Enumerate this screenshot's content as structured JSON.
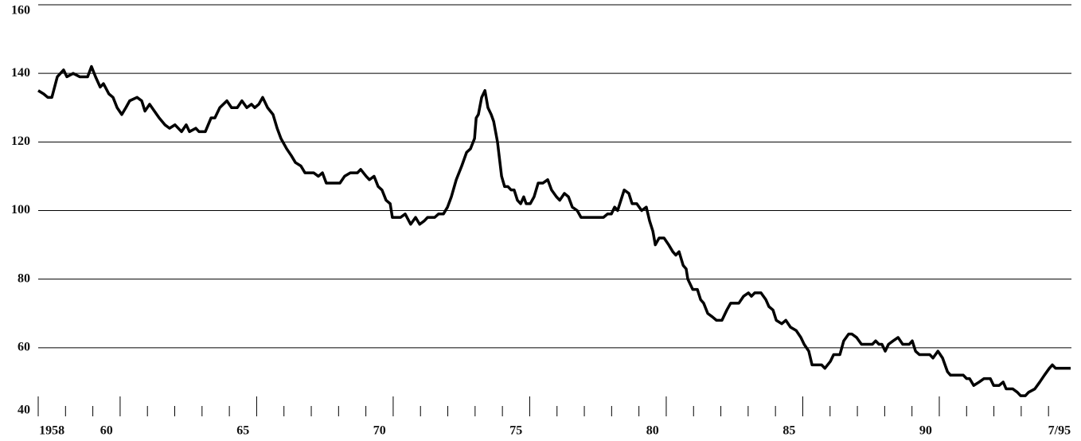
{
  "chart_data": {
    "type": "line",
    "ylim": [
      40,
      160
    ],
    "yticks": [
      40,
      60,
      80,
      100,
      120,
      140,
      160
    ],
    "grid": true,
    "xlim": [
      1958,
      1995.84
    ],
    "xticks": [
      {
        "value": 1958.5,
        "label": "1958"
      },
      {
        "value": 1960.5,
        "label": "60"
      },
      {
        "value": 1965.5,
        "label": "65"
      },
      {
        "value": 1970.5,
        "label": "70"
      },
      {
        "value": 1975.5,
        "label": "75"
      },
      {
        "value": 1980.5,
        "label": "80"
      },
      {
        "value": 1985.5,
        "label": "85"
      },
      {
        "value": 1990.5,
        "label": "90"
      },
      {
        "value": 1995.4,
        "label": "7/95"
      }
    ],
    "x_tick_marks": [
      1959,
      1960,
      1961,
      1962,
      1963,
      1964,
      1965,
      1966,
      1967,
      1968,
      1969,
      1970,
      1971,
      1972,
      1973,
      1974,
      1975,
      1976,
      1977,
      1978,
      1979,
      1980,
      1981,
      1982,
      1983,
      1984,
      1985,
      1986,
      1987,
      1988,
      1989,
      1990,
      1991,
      1992,
      1993,
      1994,
      1995
    ],
    "color": "#000000",
    "x": [
      1958.0,
      1958.2,
      1958.35,
      1958.5,
      1958.7,
      1958.93,
      1959.05,
      1959.28,
      1959.52,
      1959.81,
      1959.95,
      1960.1,
      1960.27,
      1960.39,
      1960.59,
      1960.74,
      1960.89,
      1961.06,
      1961.21,
      1961.35,
      1961.62,
      1961.79,
      1961.91,
      1962.08,
      1962.43,
      1962.64,
      1962.81,
      1963.01,
      1963.25,
      1963.42,
      1963.54,
      1963.77,
      1963.89,
      1964.12,
      1964.33,
      1964.47,
      1964.65,
      1964.91,
      1965.08,
      1965.29,
      1965.46,
      1965.64,
      1965.81,
      1965.93,
      1966.08,
      1966.22,
      1966.4,
      1966.6,
      1966.75,
      1966.89,
      1967.1,
      1967.27,
      1967.42,
      1967.62,
      1967.77,
      1968.09,
      1968.26,
      1968.41,
      1968.55,
      1968.85,
      1969.05,
      1969.22,
      1969.43,
      1969.69,
      1969.81,
      1970.01,
      1970.13,
      1970.3,
      1970.45,
      1970.59,
      1970.74,
      1970.89,
      1970.97,
      1971.27,
      1971.44,
      1971.64,
      1971.82,
      1971.97,
      1972.14,
      1972.26,
      1972.52,
      1972.66,
      1972.84,
      1972.99,
      1973.13,
      1973.31,
      1973.51,
      1973.69,
      1973.83,
      1973.98,
      1974.04,
      1974.12,
      1974.24,
      1974.36,
      1974.47,
      1974.59,
      1974.68,
      1974.82,
      1974.97,
      1975.08,
      1975.2,
      1975.32,
      1975.43,
      1975.55,
      1975.67,
      1975.78,
      1975.87,
      1976.02,
      1976.16,
      1976.31,
      1976.48,
      1976.66,
      1976.8,
      1976.98,
      1977.1,
      1977.27,
      1977.42,
      1977.56,
      1977.74,
      1977.88,
      1978.47,
      1978.7,
      1978.85,
      1978.99,
      1979.11,
      1979.22,
      1979.34,
      1979.46,
      1979.63,
      1979.75,
      1979.92,
      1980.1,
      1980.27,
      1980.39,
      1980.51,
      1980.6,
      1980.74,
      1980.92,
      1981.09,
      1981.24,
      1981.35,
      1981.47,
      1981.62,
      1981.73,
      1981.79,
      1981.97,
      1982.14,
      1982.26,
      1982.37,
      1982.52,
      1982.69,
      1982.84,
      1983.04,
      1983.22,
      1983.36,
      1983.66,
      1983.83,
      1984.01,
      1984.12,
      1984.24,
      1984.47,
      1984.65,
      1984.76,
      1984.91,
      1985.03,
      1985.23,
      1985.38,
      1985.55,
      1985.76,
      1985.93,
      1986.05,
      1986.22,
      1986.34,
      1986.69,
      1986.81,
      1987.01,
      1987.13,
      1987.36,
      1987.5,
      1987.68,
      1987.8,
      1987.97,
      1988.15,
      1988.44,
      1988.55,
      1988.67,
      1988.79,
      1988.9,
      1989.02,
      1989.14,
      1989.31,
      1989.49,
      1989.66,
      1989.9,
      1990.01,
      1990.13,
      1990.27,
      1990.51,
      1990.65,
      1990.77,
      1990.95,
      1991.12,
      1991.3,
      1991.41,
      1991.88,
      1992.0,
      1992.11,
      1992.26,
      1992.46,
      1992.64,
      1992.87,
      1992.99,
      1993.19,
      1993.34,
      1993.45,
      1993.69,
      1993.86,
      1993.98,
      1994.15,
      1994.27,
      1994.5,
      1994.68,
      1994.85,
      1995.03,
      1995.14,
      1995.26,
      1995.81
    ],
    "values": [
      135,
      134,
      133,
      133,
      139,
      141,
      139,
      140,
      139,
      139,
      142,
      139,
      136,
      137,
      134,
      133,
      130,
      128,
      130,
      132,
      133,
      132,
      129,
      131,
      127,
      125,
      124,
      125,
      123,
      125,
      123,
      124,
      123,
      123,
      127,
      127,
      130,
      132,
      130,
      130,
      132,
      130,
      131,
      130,
      131,
      133,
      130,
      128,
      124,
      121,
      118,
      116,
      114,
      113,
      111,
      111,
      110,
      111,
      108,
      108,
      108,
      110,
      111,
      111,
      112,
      110,
      109,
      110,
      107,
      106,
      103,
      102,
      98,
      98,
      99,
      96,
      98,
      96,
      97,
      98,
      98,
      99,
      99,
      101,
      104,
      109,
      113,
      117,
      118,
      121,
      127,
      128,
      133,
      135,
      130,
      128,
      126,
      120,
      110,
      107,
      107,
      106,
      106,
      103,
      102,
      104,
      102,
      102,
      104,
      108,
      108,
      109,
      106,
      104,
      103,
      105,
      104,
      101,
      100,
      98,
      98,
      98,
      99,
      99,
      101,
      100,
      103,
      106,
      105,
      102,
      102,
      100,
      101,
      97,
      94,
      90,
      92,
      92,
      90,
      88,
      87,
      88,
      84,
      83,
      80,
      77,
      77,
      74,
      73,
      70,
      69,
      68,
      68,
      71,
      73,
      73,
      75,
      76,
      75,
      76,
      76,
      74,
      72,
      71,
      68,
      67,
      68,
      66,
      65,
      63,
      61,
      59,
      55,
      55,
      54,
      56,
      58,
      58,
      62,
      64,
      64,
      63,
      61,
      61,
      61,
      62,
      61,
      61,
      59,
      61,
      62,
      63,
      61,
      61,
      62,
      59,
      58,
      58,
      58,
      57,
      59,
      57,
      53,
      52,
      52,
      51,
      51,
      49,
      50,
      51,
      51,
      49,
      49,
      50,
      48,
      48,
      47,
      46,
      46,
      47,
      48,
      50,
      52,
      54,
      55,
      54,
      54
    ]
  }
}
